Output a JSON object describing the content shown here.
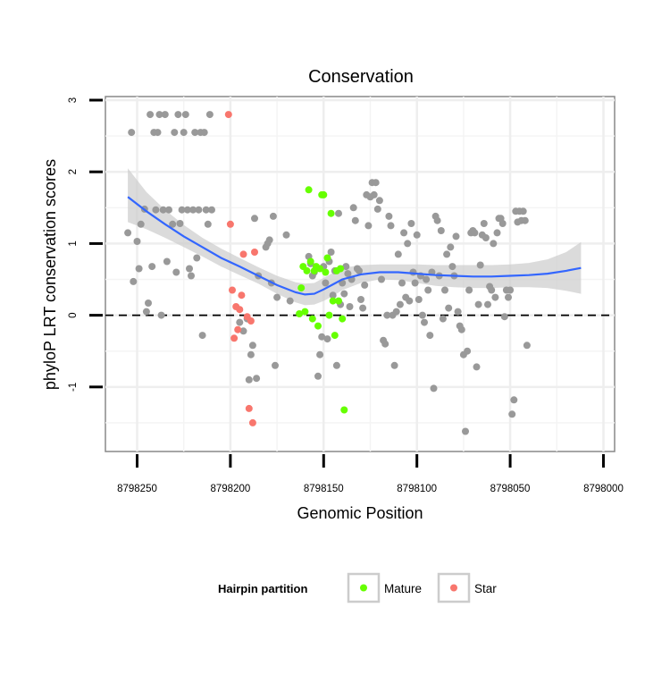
{
  "chart_data": {
    "type": "scatter",
    "title": "Conservation",
    "xlabel": "Genomic Position",
    "ylabel": "phyloP LRT conservation scores",
    "x_reversed": true,
    "xlim": [
      8798267,
      8797994
    ],
    "ylim": [
      -1.9,
      3.05
    ],
    "x_ticks": [
      8798250,
      8798200,
      8798150,
      8798100,
      8798050,
      8798000
    ],
    "x_tick_labels": [
      "8798250",
      "8798200",
      "8798150",
      "8798100",
      "8798050",
      "8798000"
    ],
    "y_ticks": [
      -1,
      0,
      1,
      2,
      3
    ],
    "y_tick_labels": [
      "-1",
      "0",
      "1",
      "2",
      "3"
    ],
    "reference_line": {
      "y": 0,
      "style": "dashed"
    },
    "grid": true,
    "legend": {
      "title": "Hairpin partition",
      "position": "bottom",
      "entries": [
        {
          "label": "Mature",
          "color": "#66ff00"
        },
        {
          "label": "Star",
          "color": "#f8766d"
        }
      ]
    },
    "colors": {
      "other": "#999999",
      "mature": "#66ff00",
      "star": "#f8766d",
      "smooth": "#3366ff",
      "ribbon": "#cccccc"
    },
    "series": [
      {
        "name": "Other",
        "points": [
          [
            8798255,
            1.15
          ],
          [
            8798253,
            2.55
          ],
          [
            8798252,
            0.47
          ],
          [
            8798250,
            1.03
          ],
          [
            8798249,
            0.65
          ],
          [
            8798248,
            1.27
          ],
          [
            8798246,
            1.48
          ],
          [
            8798245,
            0.05
          ],
          [
            8798244,
            0.17
          ],
          [
            8798243,
            2.8
          ],
          [
            8798242,
            0.68
          ],
          [
            8798241,
            2.55
          ],
          [
            8798240,
            1.47
          ],
          [
            8798239,
            2.55
          ],
          [
            8798238,
            2.8
          ],
          [
            8798237,
            0.0
          ],
          [
            8798236,
            1.47
          ],
          [
            8798235,
            2.8
          ],
          [
            8798234,
            0.75
          ],
          [
            8798233,
            1.47
          ],
          [
            8798231,
            1.27
          ],
          [
            8798230,
            2.55
          ],
          [
            8798229,
            0.6
          ],
          [
            8798228,
            2.8
          ],
          [
            8798227,
            1.28
          ],
          [
            8798226,
            1.47
          ],
          [
            8798225,
            2.55
          ],
          [
            8798224,
            2.8
          ],
          [
            8798223,
            1.47
          ],
          [
            8798222,
            0.65
          ],
          [
            8798221,
            0.55
          ],
          [
            8798220,
            1.47
          ],
          [
            8798219,
            2.55
          ],
          [
            8798218,
            0.8
          ],
          [
            8798217,
            1.47
          ],
          [
            8798216,
            2.55
          ],
          [
            8798215,
            -0.28
          ],
          [
            8798214,
            2.55
          ],
          [
            8798213,
            1.47
          ],
          [
            8798212,
            1.27
          ],
          [
            8798211,
            2.8
          ],
          [
            8798210,
            1.47
          ],
          [
            8798195,
            -0.1
          ],
          [
            8798193,
            -0.22
          ],
          [
            8798191,
            -0.05
          ],
          [
            8798190,
            -0.9
          ],
          [
            8798189,
            -0.55
          ],
          [
            8798188,
            -0.42
          ],
          [
            8798187,
            1.35
          ],
          [
            8798186,
            -0.88
          ],
          [
            8798185,
            0.55
          ],
          [
            8798181,
            0.95
          ],
          [
            8798180,
            1.0
          ],
          [
            8798179,
            1.05
          ],
          [
            8798178,
            0.45
          ],
          [
            8798177,
            1.38
          ],
          [
            8798176,
            -0.7
          ],
          [
            8798175,
            0.25
          ],
          [
            8798170,
            1.12
          ],
          [
            8798168,
            0.2
          ],
          [
            8798158,
            0.82
          ],
          [
            8798157,
            0.72
          ],
          [
            8798156,
            0.55
          ],
          [
            8798155,
            0.6
          ],
          [
            8798153,
            -0.85
          ],
          [
            8798152,
            -0.55
          ],
          [
            8798151,
            -0.3
          ],
          [
            8798150,
            0.68
          ],
          [
            8798149,
            0.45
          ],
          [
            8798148,
            -0.33
          ],
          [
            8798147,
            0.75
          ],
          [
            8798146,
            0.88
          ],
          [
            8798145,
            0.28
          ],
          [
            8798144,
            0.62
          ],
          [
            8798143,
            -0.7
          ],
          [
            8798142,
            1.42
          ],
          [
            8798141,
            0.15
          ],
          [
            8798140,
            0.45
          ],
          [
            8798139,
            0.3
          ],
          [
            8798138,
            0.68
          ],
          [
            8798137,
            0.58
          ],
          [
            8798136,
            0.12
          ],
          [
            8798135,
            0.5
          ],
          [
            8798134,
            1.5
          ],
          [
            8798133,
            1.32
          ],
          [
            8798132,
            0.65
          ],
          [
            8798131,
            0.62
          ],
          [
            8798130,
            0.22
          ],
          [
            8798129,
            0.1
          ],
          [
            8798128,
            0.42
          ],
          [
            8798127,
            1.68
          ],
          [
            8798126,
            1.25
          ],
          [
            8798125,
            1.65
          ],
          [
            8798124,
            1.85
          ],
          [
            8798123,
            1.68
          ],
          [
            8798122,
            1.85
          ],
          [
            8798121,
            1.48
          ],
          [
            8798120,
            1.6
          ],
          [
            8798119,
            0.5
          ],
          [
            8798118,
            -0.35
          ],
          [
            8798117,
            -0.4
          ],
          [
            8798116,
            0.0
          ],
          [
            8798115,
            1.38
          ],
          [
            8798114,
            1.25
          ],
          [
            8798113,
            0.0
          ],
          [
            8798112,
            -0.7
          ],
          [
            8798111,
            0.05
          ],
          [
            8798110,
            0.85
          ],
          [
            8798109,
            0.15
          ],
          [
            8798108,
            0.45
          ],
          [
            8798107,
            1.15
          ],
          [
            8798106,
            0.25
          ],
          [
            8798105,
            1.0
          ],
          [
            8798104,
            0.2
          ],
          [
            8798103,
            1.28
          ],
          [
            8798102,
            0.6
          ],
          [
            8798101,
            0.45
          ],
          [
            8798100,
            1.12
          ],
          [
            8798099,
            0.22
          ],
          [
            8798098,
            0.55
          ],
          [
            8798097,
            0.0
          ],
          [
            8798096,
            -0.1
          ],
          [
            8798095,
            0.5
          ],
          [
            8798094,
            0.35
          ],
          [
            8798093,
            -0.28
          ],
          [
            8798092,
            0.6
          ],
          [
            8798091,
            -1.02
          ],
          [
            8798090,
            1.38
          ],
          [
            8798089,
            1.32
          ],
          [
            8798088,
            0.55
          ],
          [
            8798087,
            1.18
          ],
          [
            8798086,
            -0.05
          ],
          [
            8798085,
            0.35
          ],
          [
            8798084,
            0.85
          ],
          [
            8798083,
            0.1
          ],
          [
            8798082,
            0.95
          ],
          [
            8798081,
            0.68
          ],
          [
            8798080,
            0.55
          ],
          [
            8798079,
            1.1
          ],
          [
            8798078,
            0.05
          ],
          [
            8798077,
            -0.15
          ],
          [
            8798076,
            -0.2
          ],
          [
            8798075,
            -0.55
          ],
          [
            8798074,
            -1.62
          ],
          [
            8798073,
            -0.5
          ],
          [
            8798072,
            0.35
          ],
          [
            8798071,
            1.15
          ],
          [
            8798070,
            1.18
          ],
          [
            8798069,
            1.15
          ],
          [
            8798068,
            -0.72
          ],
          [
            8798067,
            0.15
          ],
          [
            8798066,
            0.7
          ],
          [
            8798065,
            1.12
          ],
          [
            8798064,
            1.28
          ],
          [
            8798063,
            1.08
          ],
          [
            8798062,
            0.15
          ],
          [
            8798061,
            0.4
          ],
          [
            8798060,
            0.35
          ],
          [
            8798059,
            1.0
          ],
          [
            8798058,
            0.25
          ],
          [
            8798057,
            1.15
          ],
          [
            8798056,
            1.35
          ],
          [
            8798055,
            1.35
          ],
          [
            8798054,
            1.28
          ],
          [
            8798053,
            -0.02
          ],
          [
            8798052,
            0.35
          ],
          [
            8798051,
            0.25
          ],
          [
            8798050,
            0.35
          ],
          [
            8798049,
            -1.38
          ],
          [
            8798048,
            -1.18
          ],
          [
            8798047,
            1.45
          ],
          [
            8798046,
            1.3
          ],
          [
            8798045,
            1.45
          ],
          [
            8798044,
            1.32
          ],
          [
            8798043,
            1.45
          ],
          [
            8798042,
            1.32
          ],
          [
            8798041,
            -0.42
          ]
        ]
      },
      {
        "name": "Mature",
        "points": [
          [
            8798163,
            0.02
          ],
          [
            8798162,
            0.38
          ],
          [
            8798161,
            0.68
          ],
          [
            8798160,
            0.05
          ],
          [
            8798159,
            0.62
          ],
          [
            8798158,
            1.75
          ],
          [
            8798157,
            0.75
          ],
          [
            8798156,
            -0.05
          ],
          [
            8798155,
            0.62
          ],
          [
            8798154,
            0.68
          ],
          [
            8798153,
            -0.15
          ],
          [
            8798152,
            0.65
          ],
          [
            8798151,
            1.68
          ],
          [
            8798150,
            1.68
          ],
          [
            8798149,
            0.6
          ],
          [
            8798148,
            0.8
          ],
          [
            8798147,
            0.0
          ],
          [
            8798146,
            1.42
          ],
          [
            8798145,
            0.2
          ],
          [
            8798144,
            -0.28
          ],
          [
            8798143,
            0.62
          ],
          [
            8798142,
            0.2
          ],
          [
            8798141,
            0.65
          ],
          [
            8798140,
            -0.05
          ],
          [
            8798139,
            -1.32
          ]
        ]
      },
      {
        "name": "Star",
        "points": [
          [
            8798201,
            2.8
          ],
          [
            8798200,
            1.27
          ],
          [
            8798199,
            0.35
          ],
          [
            8798198,
            -0.32
          ],
          [
            8798197,
            0.12
          ],
          [
            8798196,
            -0.2
          ],
          [
            8798195,
            0.08
          ],
          [
            8798194,
            0.28
          ],
          [
            8798193,
            0.85
          ],
          [
            8798191,
            -0.02
          ],
          [
            8798190,
            -1.3
          ],
          [
            8798189,
            -0.08
          ],
          [
            8798188,
            -1.5
          ],
          [
            8798187,
            0.88
          ]
        ]
      }
    ],
    "smooth": {
      "x": [
        8798255,
        8798245,
        8798235,
        8798225,
        8798215,
        8798205,
        8798195,
        8798185,
        8798175,
        8798165,
        8798160,
        8798155,
        8798150,
        8798145,
        8798140,
        8798130,
        8798120,
        8798110,
        8798100,
        8798090,
        8798080,
        8798070,
        8798060,
        8798050,
        8798040,
        8798030,
        8798020,
        8798012
      ],
      "y": [
        1.65,
        1.45,
        1.27,
        1.1,
        0.95,
        0.8,
        0.68,
        0.55,
        0.42,
        0.32,
        0.29,
        0.3,
        0.36,
        0.43,
        0.5,
        0.57,
        0.6,
        0.6,
        0.58,
        0.56,
        0.55,
        0.54,
        0.54,
        0.55,
        0.56,
        0.58,
        0.62,
        0.66
      ],
      "lower": [
        1.3,
        1.2,
        1.08,
        0.95,
        0.82,
        0.68,
        0.56,
        0.44,
        0.3,
        0.18,
        0.14,
        0.15,
        0.2,
        0.27,
        0.35,
        0.45,
        0.5,
        0.49,
        0.45,
        0.41,
        0.39,
        0.38,
        0.38,
        0.39,
        0.39,
        0.38,
        0.34,
        0.3
      ],
      "upper": [
        2.05,
        1.72,
        1.47,
        1.26,
        1.08,
        0.93,
        0.8,
        0.67,
        0.55,
        0.46,
        0.44,
        0.45,
        0.52,
        0.59,
        0.66,
        0.7,
        0.71,
        0.71,
        0.71,
        0.7,
        0.7,
        0.7,
        0.7,
        0.71,
        0.73,
        0.78,
        0.88,
        1.02
      ]
    }
  }
}
